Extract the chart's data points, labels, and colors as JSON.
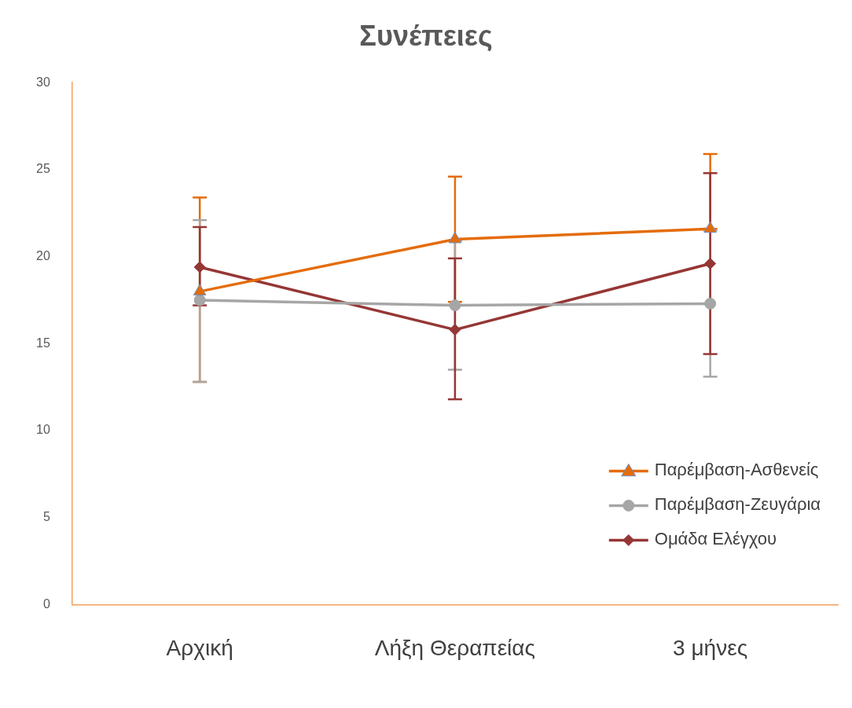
{
  "chart_data": {
    "type": "line",
    "title": "Συνέπειες",
    "categories": [
      "Αρχική",
      "Λήξη Θεραπείας",
      "3 μήνες"
    ],
    "series": [
      {
        "name": "Παρέμβαση-Ασθενείς",
        "color": "#e46c0a",
        "marker": "triangle",
        "values": [
          18.0,
          21.0,
          21.6
        ],
        "errors": [
          [
            12.8,
            23.4
          ],
          [
            17.4,
            24.6
          ],
          [
            21.6,
            25.9
          ]
        ]
      },
      {
        "name": "Παρέμβαση-Ζευγάρια",
        "color": "#a6a6a6",
        "marker": "circle",
        "values": [
          17.5,
          17.2,
          17.3
        ],
        "errors": [
          [
            12.8,
            22.1
          ],
          [
            13.5,
            20.9
          ],
          [
            13.1,
            21.5
          ]
        ]
      },
      {
        "name": "Ομάδα Ελέγχου",
        "color": "#953735",
        "marker": "diamond",
        "values": [
          19.4,
          15.8,
          19.6
        ],
        "errors": [
          [
            17.2,
            21.7
          ],
          [
            11.8,
            19.9
          ],
          [
            14.4,
            24.8
          ]
        ]
      }
    ],
    "ylim": [
      0,
      30
    ],
    "yticks": [
      0,
      5,
      10,
      15,
      20,
      25,
      30
    ],
    "grid": false,
    "legend": "bottom right"
  }
}
